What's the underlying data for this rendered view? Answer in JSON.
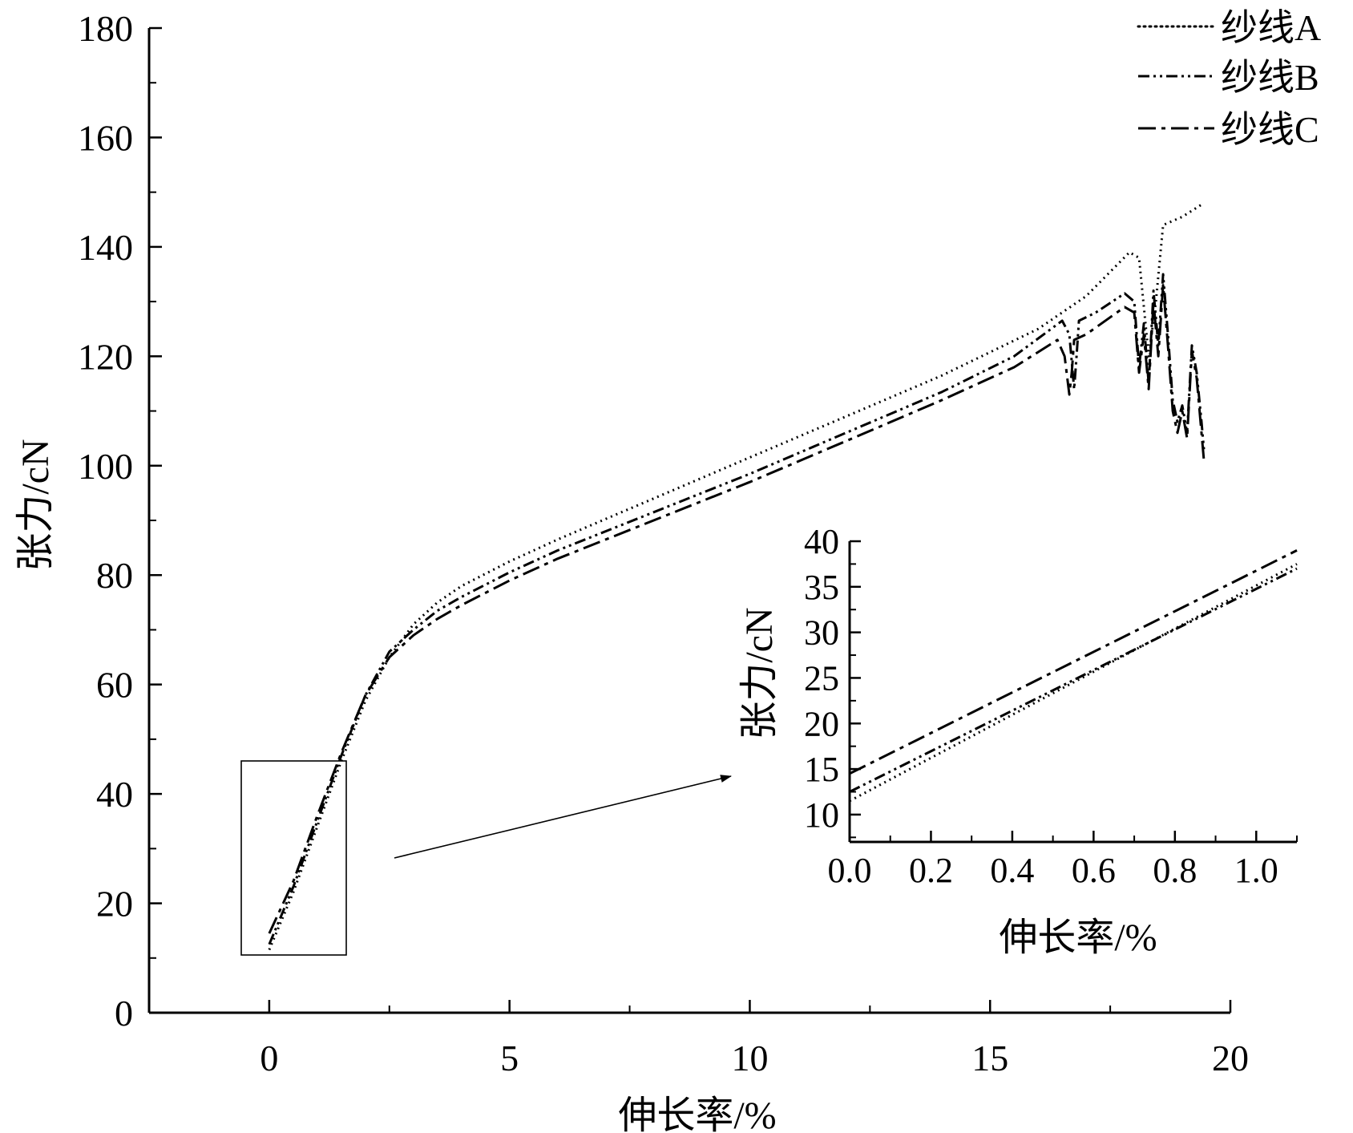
{
  "chart_data": [
    {
      "type": "line",
      "xlabel": "伸长率/%",
      "ylabel": "张力/cN",
      "xlim": [
        -2.5,
        20
      ],
      "ylim": [
        0,
        180
      ],
      "x_ticks": [
        "0",
        "5",
        "10",
        "15",
        "20"
      ],
      "y_ticks": [
        "0",
        "20",
        "40",
        "60",
        "80",
        "100",
        "120",
        "140",
        "160",
        "180"
      ],
      "legend_position": "top-right",
      "legend": [
        "纱线A",
        "纱线B",
        "纱线C"
      ],
      "series": [
        {
          "name": "纱线A",
          "style": "dotted",
          "x": [
            0.0,
            0.5,
            1.0,
            1.5,
            2.0,
            2.5,
            3.0,
            3.5,
            4.0,
            5.0,
            6.0,
            8.0,
            10.0,
            12.0,
            14.0,
            16.0,
            17.0,
            17.9,
            18.1,
            18.3,
            18.45,
            18.6,
            19.0,
            19.45
          ],
          "y": [
            11.5,
            22,
            34,
            46,
            57,
            65,
            71,
            75,
            78,
            82.5,
            86.5,
            94,
            101.5,
            109,
            116.5,
            125,
            131,
            139,
            138,
            120,
            130,
            144,
            145.5,
            148
          ]
        },
        {
          "name": "纱线B",
          "style": "dash-dot-dot",
          "x": [
            0.0,
            0.5,
            1.0,
            1.5,
            2.0,
            2.5,
            3.0,
            3.5,
            4.0,
            5.0,
            6.0,
            8.0,
            10.0,
            12.0,
            14.0,
            15.5,
            16.5,
            16.65,
            16.75,
            16.8,
            16.85,
            17.2,
            17.8,
            18.0,
            18.1,
            18.2,
            18.3,
            18.4,
            18.5,
            18.6,
            18.7,
            18.8,
            18.9,
            19.0,
            19.1,
            19.2,
            19.3,
            19.4,
            19.45
          ],
          "y": [
            12.5,
            23,
            35,
            47,
            58,
            66,
            70,
            73.5,
            76,
            80.5,
            84.5,
            91.5,
            98.5,
            106,
            113.5,
            120,
            126.5,
            124,
            114,
            120,
            126.5,
            128,
            131.5,
            130,
            118,
            126,
            115,
            132,
            122,
            135,
            124,
            112,
            108,
            111,
            106,
            122,
            117,
            108,
            103
          ]
        },
        {
          "name": "纱线C",
          "style": "dash-dot",
          "x": [
            0.0,
            0.5,
            1.0,
            1.5,
            2.0,
            2.5,
            3.0,
            3.5,
            4.0,
            5.0,
            6.0,
            8.0,
            10.0,
            12.0,
            14.0,
            15.5,
            16.4,
            16.55,
            16.65,
            16.7,
            16.75,
            17.0,
            17.8,
            18.0,
            18.1,
            18.2,
            18.3,
            18.4,
            18.5,
            18.6,
            18.7,
            18.8,
            18.9,
            19.0,
            19.1,
            19.2,
            19.3,
            19.4,
            19.45
          ],
          "y": [
            14.5,
            24,
            36,
            47.5,
            58,
            65,
            69,
            72,
            74.5,
            79,
            83,
            90,
            97,
            104.5,
            112,
            118,
            123,
            120,
            113,
            117,
            123,
            124,
            129,
            128,
            117,
            124,
            114,
            130,
            120,
            133,
            122,
            110,
            106,
            110,
            105,
            121,
            116,
            106,
            101
          ]
        }
      ],
      "inset": {
        "xlabel": "伸长率/%",
        "ylabel": "张力/cN",
        "xlim": [
          0,
          1.1
        ],
        "ylim": [
          7,
          40
        ],
        "x_ticks": [
          "0.0",
          "0.2",
          "0.4",
          "0.6",
          "0.8",
          "1.0"
        ],
        "y_ticks": [
          "10",
          "15",
          "20",
          "25",
          "30",
          "35",
          "40"
        ],
        "series": [
          {
            "name": "纱线A",
            "style": "dotted",
            "x": [
              0.0,
              1.1
            ],
            "y": [
              11.5,
              37.5
            ]
          },
          {
            "name": "纱线B",
            "style": "dash-dot-dot",
            "x": [
              0.0,
              1.1
            ],
            "y": [
              12.5,
              37
            ]
          },
          {
            "name": "纱线C",
            "style": "dash-dot",
            "x": [
              0.0,
              1.1
            ],
            "y": [
              14.5,
              39
            ]
          }
        ]
      }
    }
  ]
}
